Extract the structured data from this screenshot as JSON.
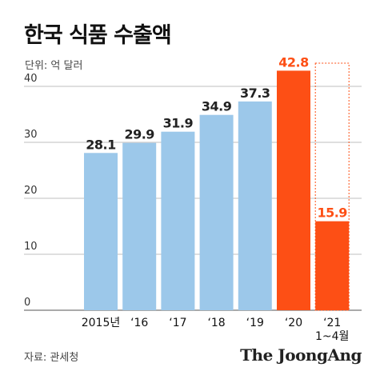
{
  "title": "한국 식품 수출액",
  "unit_label": "단위: 억 달러",
  "source": "자료: 관세청",
  "brand": "The JoongAng",
  "chart_data": {
    "type": "bar",
    "categories": [
      "2015년",
      "‘16",
      "‘17",
      "‘18",
      "‘19",
      "‘20",
      "‘21\n1~4월"
    ],
    "category_lines": [
      [
        "2015년"
      ],
      [
        "‘16"
      ],
      [
        "‘17"
      ],
      [
        "‘18"
      ],
      [
        "‘19"
      ],
      [
        "‘20"
      ],
      [
        "‘21",
        "1~4월"
      ]
    ],
    "values": [
      28.1,
      29.9,
      31.9,
      34.9,
      37.3,
      42.8,
      15.9
    ],
    "value_labels": [
      "28.1",
      "29.9",
      "31.9",
      "34.9",
      "37.3",
      "42.8",
      "15.9"
    ],
    "highlight": [
      false,
      false,
      false,
      false,
      false,
      true,
      true
    ],
    "projection_outline_index": 6,
    "yticks": [
      0,
      10,
      20,
      30,
      40
    ],
    "ylim": [
      0,
      48
    ],
    "grid": true,
    "colors": {
      "base": "#9cc8ea",
      "highlight": "#fd4f15",
      "label_dark": "#222222",
      "grid": "#bfbfbf"
    }
  }
}
